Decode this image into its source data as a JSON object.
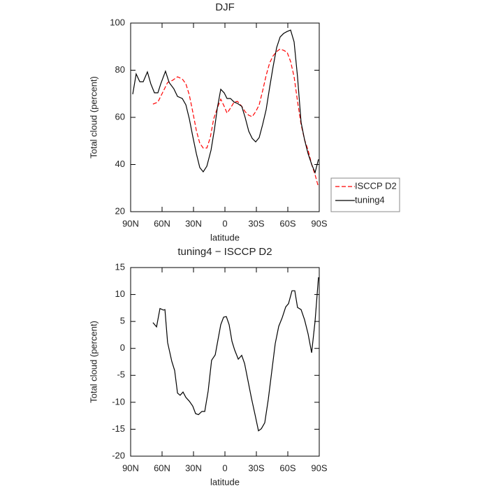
{
  "chart_data": [
    {
      "type": "line",
      "title": "DJF",
      "xlabel": "latitude",
      "ylabel": "Total cloud (percent)",
      "xlim": [
        90,
        -90
      ],
      "ylim": [
        20,
        100
      ],
      "xticks": [
        {
          "value": 90,
          "label": "90N"
        },
        {
          "value": 60,
          "label": "60N"
        },
        {
          "value": 30,
          "label": "30N"
        },
        0,
        {
          "value": -30,
          "label": "30S"
        },
        {
          "value": -60,
          "label": "60S"
        },
        {
          "value": -90,
          "label": "90S"
        }
      ],
      "yticks": [
        20,
        40,
        60,
        80,
        100
      ],
      "legend": "right",
      "series": [
        {
          "name": "ISCCP D2",
          "color": "#ff0000",
          "style": "dashed",
          "x": [
            68.7,
            64,
            59.3,
            54.7,
            50,
            45.3,
            40.7,
            37.3,
            34,
            30.7,
            27.3,
            24,
            20.7,
            17.3,
            14,
            10.7,
            7.3,
            4,
            0.7,
            -2,
            -5.3,
            -8.7,
            -12,
            -16,
            -19.3,
            -22.7,
            -26,
            -29.3,
            -32.7,
            -36,
            -39.3,
            -42.7,
            -46,
            -49.3,
            -52.7,
            -56,
            -59.3,
            -62.7,
            -66,
            -69.3,
            -72.7,
            -76,
            -79.3,
            -82.7,
            -86,
            -89.3
          ],
          "values": [
            65.6,
            66.5,
            70.7,
            74.8,
            75.7,
            77.2,
            76.3,
            74.2,
            69.5,
            62.4,
            54.4,
            49,
            47,
            47,
            51.4,
            59.4,
            63.9,
            67.7,
            64.7,
            61.8,
            63.9,
            66.5,
            66.8,
            64.7,
            62.4,
            60.9,
            60.3,
            62.4,
            65.3,
            71.3,
            77.8,
            83.1,
            86.1,
            87.9,
            89,
            88.4,
            87.6,
            83.7,
            77.2,
            66.8,
            57,
            50.5,
            46.1,
            40.1,
            35.7,
            30.4
          ]
        },
        {
          "name": "tuning4",
          "color": "#000000",
          "style": "solid",
          "x": [
            88,
            84.7,
            81.3,
            78,
            74,
            70.7,
            67.3,
            64,
            61.3,
            56.7,
            53.3,
            48.7,
            45.3,
            40.7,
            37.3,
            34,
            30.7,
            27.3,
            24,
            20.7,
            17.3,
            13.3,
            10,
            7.3,
            4,
            0.7,
            -2,
            -5.3,
            -8.7,
            -12,
            -16,
            -19.3,
            -22.7,
            -26,
            -29.3,
            -32.7,
            -36,
            -39.3,
            -42.7,
            -46,
            -49.3,
            -52.7,
            -56,
            -59.3,
            -62.7,
            -66,
            -69.3,
            -72.7,
            -76,
            -79.3,
            -82.7,
            -86,
            -89.3
          ],
          "values": [
            69.8,
            78.4,
            75.1,
            75.1,
            79.3,
            74.2,
            70.4,
            70.4,
            74.2,
            79.6,
            74.8,
            72.1,
            68.9,
            68,
            65.3,
            59.4,
            52,
            44.6,
            38.7,
            36.9,
            39.3,
            46.1,
            55,
            63.9,
            71.9,
            70.4,
            68,
            68,
            66.5,
            65.9,
            64.7,
            60,
            54.1,
            51.1,
            49.6,
            51.4,
            57,
            63.3,
            72.7,
            81.6,
            89.6,
            94.1,
            95.6,
            96.4,
            97,
            92,
            77.2,
            57.9,
            50.5,
            44.6,
            40.1,
            36.6,
            42.2
          ]
        }
      ]
    },
    {
      "type": "line",
      "title": "tuning4 − ISCCP D2",
      "xlabel": "latitude",
      "ylabel": "Total cloud (percent)",
      "xlim": [
        90,
        -90
      ],
      "ylim": [
        -20,
        15
      ],
      "xticks": [
        {
          "value": 90,
          "label": "90N"
        },
        {
          "value": 60,
          "label": "60N"
        },
        {
          "value": 30,
          "label": "30N"
        },
        0,
        {
          "value": -30,
          "label": "30S"
        },
        {
          "value": -60,
          "label": "60S"
        },
        {
          "value": -90,
          "label": "90S"
        }
      ],
      "yticks": [
        -20,
        -15,
        -10,
        -5,
        0,
        5,
        10,
        15
      ],
      "color": "#000000",
      "x": [
        68.7,
        65.3,
        62,
        58.7,
        57.3,
        54.7,
        50.7,
        48,
        45.3,
        42.7,
        40,
        37.3,
        34,
        30.7,
        28,
        25.3,
        22,
        19.3,
        16,
        12.7,
        9.3,
        6.7,
        4,
        1.3,
        -1.3,
        -4,
        -6.7,
        -9.3,
        -12.7,
        -16,
        -18.7,
        -22,
        -25.3,
        -28.7,
        -32,
        -34.7,
        -38,
        -41.3,
        -44.7,
        -48,
        -51.3,
        -54.7,
        -58,
        -60.7,
        -64,
        -66.7,
        -69.3,
        -72.7,
        -76,
        -79.3,
        -82.7,
        -86,
        -89.3
      ],
      "values": [
        4.8,
        4,
        7.4,
        7.1,
        7.2,
        1.1,
        -2.4,
        -4.1,
        -8.3,
        -8.7,
        -8.1,
        -9.1,
        -9.8,
        -10.7,
        -12.1,
        -12.3,
        -11.7,
        -11.7,
        -7.9,
        -2.2,
        -1.2,
        1.5,
        4.4,
        5.8,
        5.9,
        4.4,
        1.3,
        -0.3,
        -2,
        -1.3,
        -2.8,
        -6,
        -9.2,
        -12.3,
        -15.3,
        -14.9,
        -13.8,
        -9.5,
        -4.3,
        0.9,
        4.1,
        5.7,
        7.7,
        8.3,
        10.7,
        10.7,
        7.6,
        7.2,
        5.3,
        2.7,
        -0.8,
        5,
        13.2
      ]
    }
  ]
}
